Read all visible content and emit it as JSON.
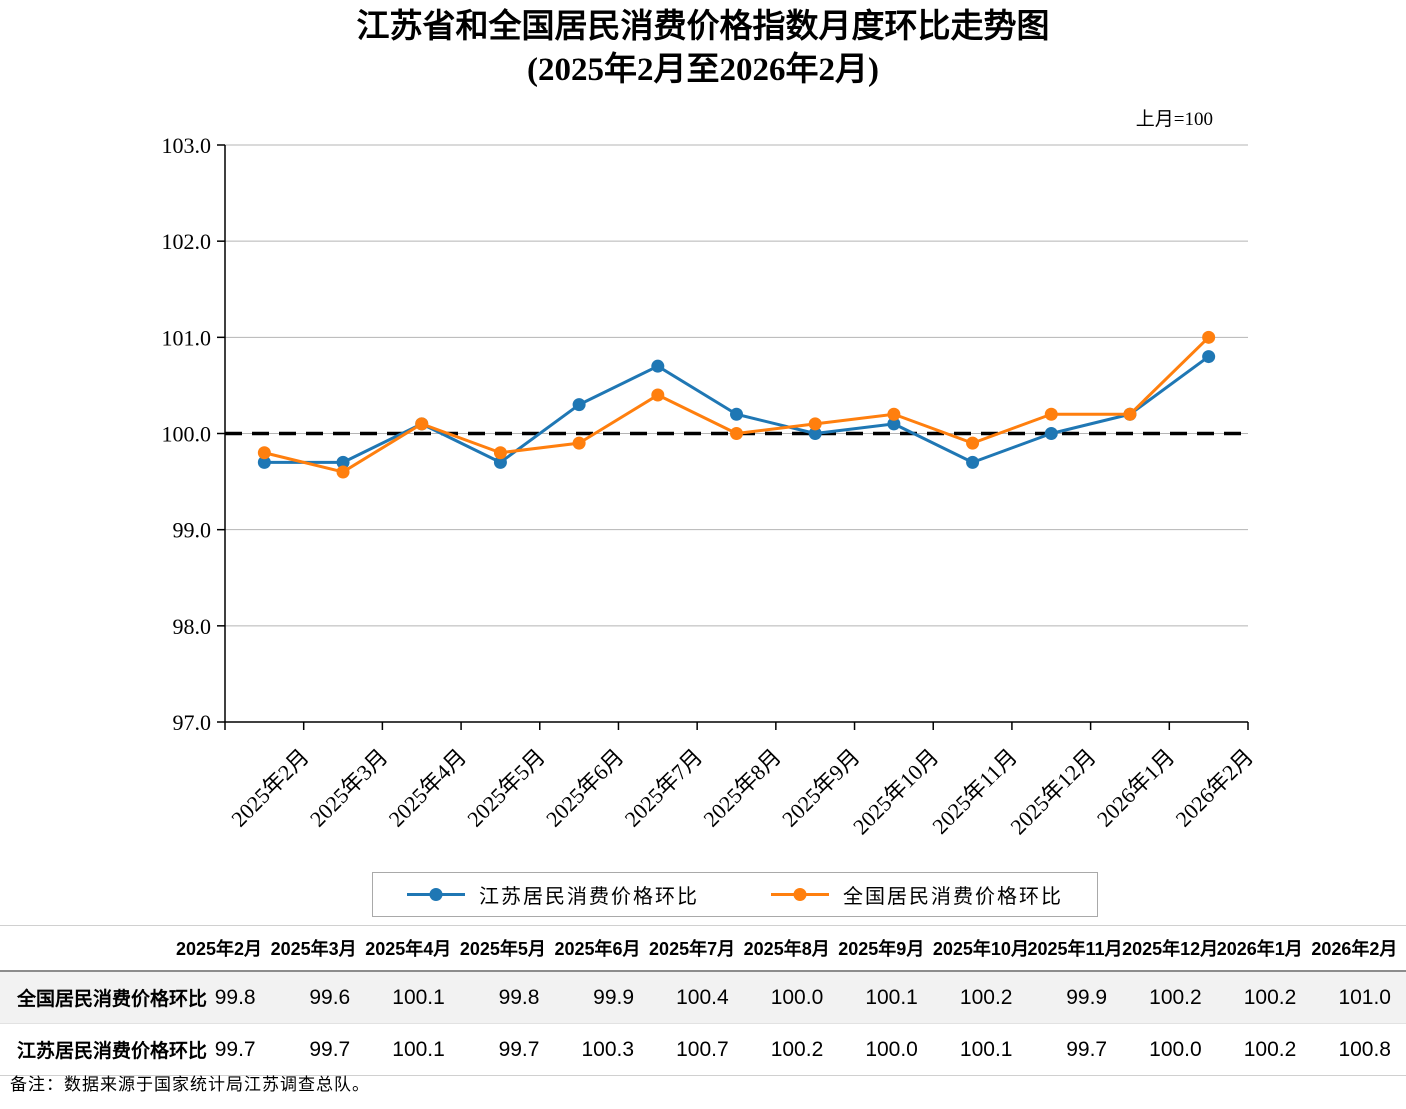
{
  "title": {
    "line1": "江苏省和全国居民消费价格指数月度环比走势图",
    "line2": "(2025年2月至2026年2月)"
  },
  "unit_label": "上月=100",
  "chart_data": {
    "type": "line",
    "title": "江苏省和全国居民消费价格指数月度环比走势图(2025年2月至2026年2月)",
    "note": "上月=100",
    "categories": [
      "2025年2月",
      "2025年3月",
      "2025年4月",
      "2025年5月",
      "2025年6月",
      "2025年7月",
      "2025年8月",
      "2025年9月",
      "2025年10月",
      "2025年11月",
      "2025年12月",
      "2026年1月",
      "2026年2月"
    ],
    "series": [
      {
        "id": "jiangsu",
        "name": "江苏居民消费价格环比",
        "color": "#1F77B4",
        "values": [
          99.7,
          99.7,
          100.1,
          99.7,
          100.3,
          100.7,
          100.2,
          100.0,
          100.1,
          99.7,
          100.0,
          100.2,
          100.8
        ]
      },
      {
        "id": "national",
        "name": "全国居民消费价格环比",
        "color": "#FF7F0E",
        "values": [
          99.8,
          99.6,
          100.1,
          99.8,
          99.9,
          100.4,
          100.0,
          100.1,
          100.2,
          99.9,
          100.2,
          100.2,
          101.0
        ]
      }
    ],
    "ylim": [
      97.0,
      103.0
    ],
    "ytick_step": 1.0,
    "reference_line": 100.0,
    "grid": true,
    "legend_position": "bottom"
  },
  "table": {
    "rows": [
      {
        "label": "全国居民消费价格环比",
        "values": [
          "99.8",
          "99.6",
          "100.1",
          "99.8",
          "99.9",
          "100.4",
          "100.0",
          "100.1",
          "100.2",
          "99.9",
          "100.2",
          "100.2",
          "101.0"
        ]
      },
      {
        "label": "江苏居民消费价格环比",
        "values": [
          "99.7",
          "99.7",
          "100.1",
          "99.7",
          "100.3",
          "100.7",
          "100.2",
          "100.0",
          "100.1",
          "99.7",
          "100.0",
          "100.2",
          "100.8"
        ]
      }
    ]
  },
  "footnote": "备注：数据来源于国家统计局江苏调查总队。"
}
